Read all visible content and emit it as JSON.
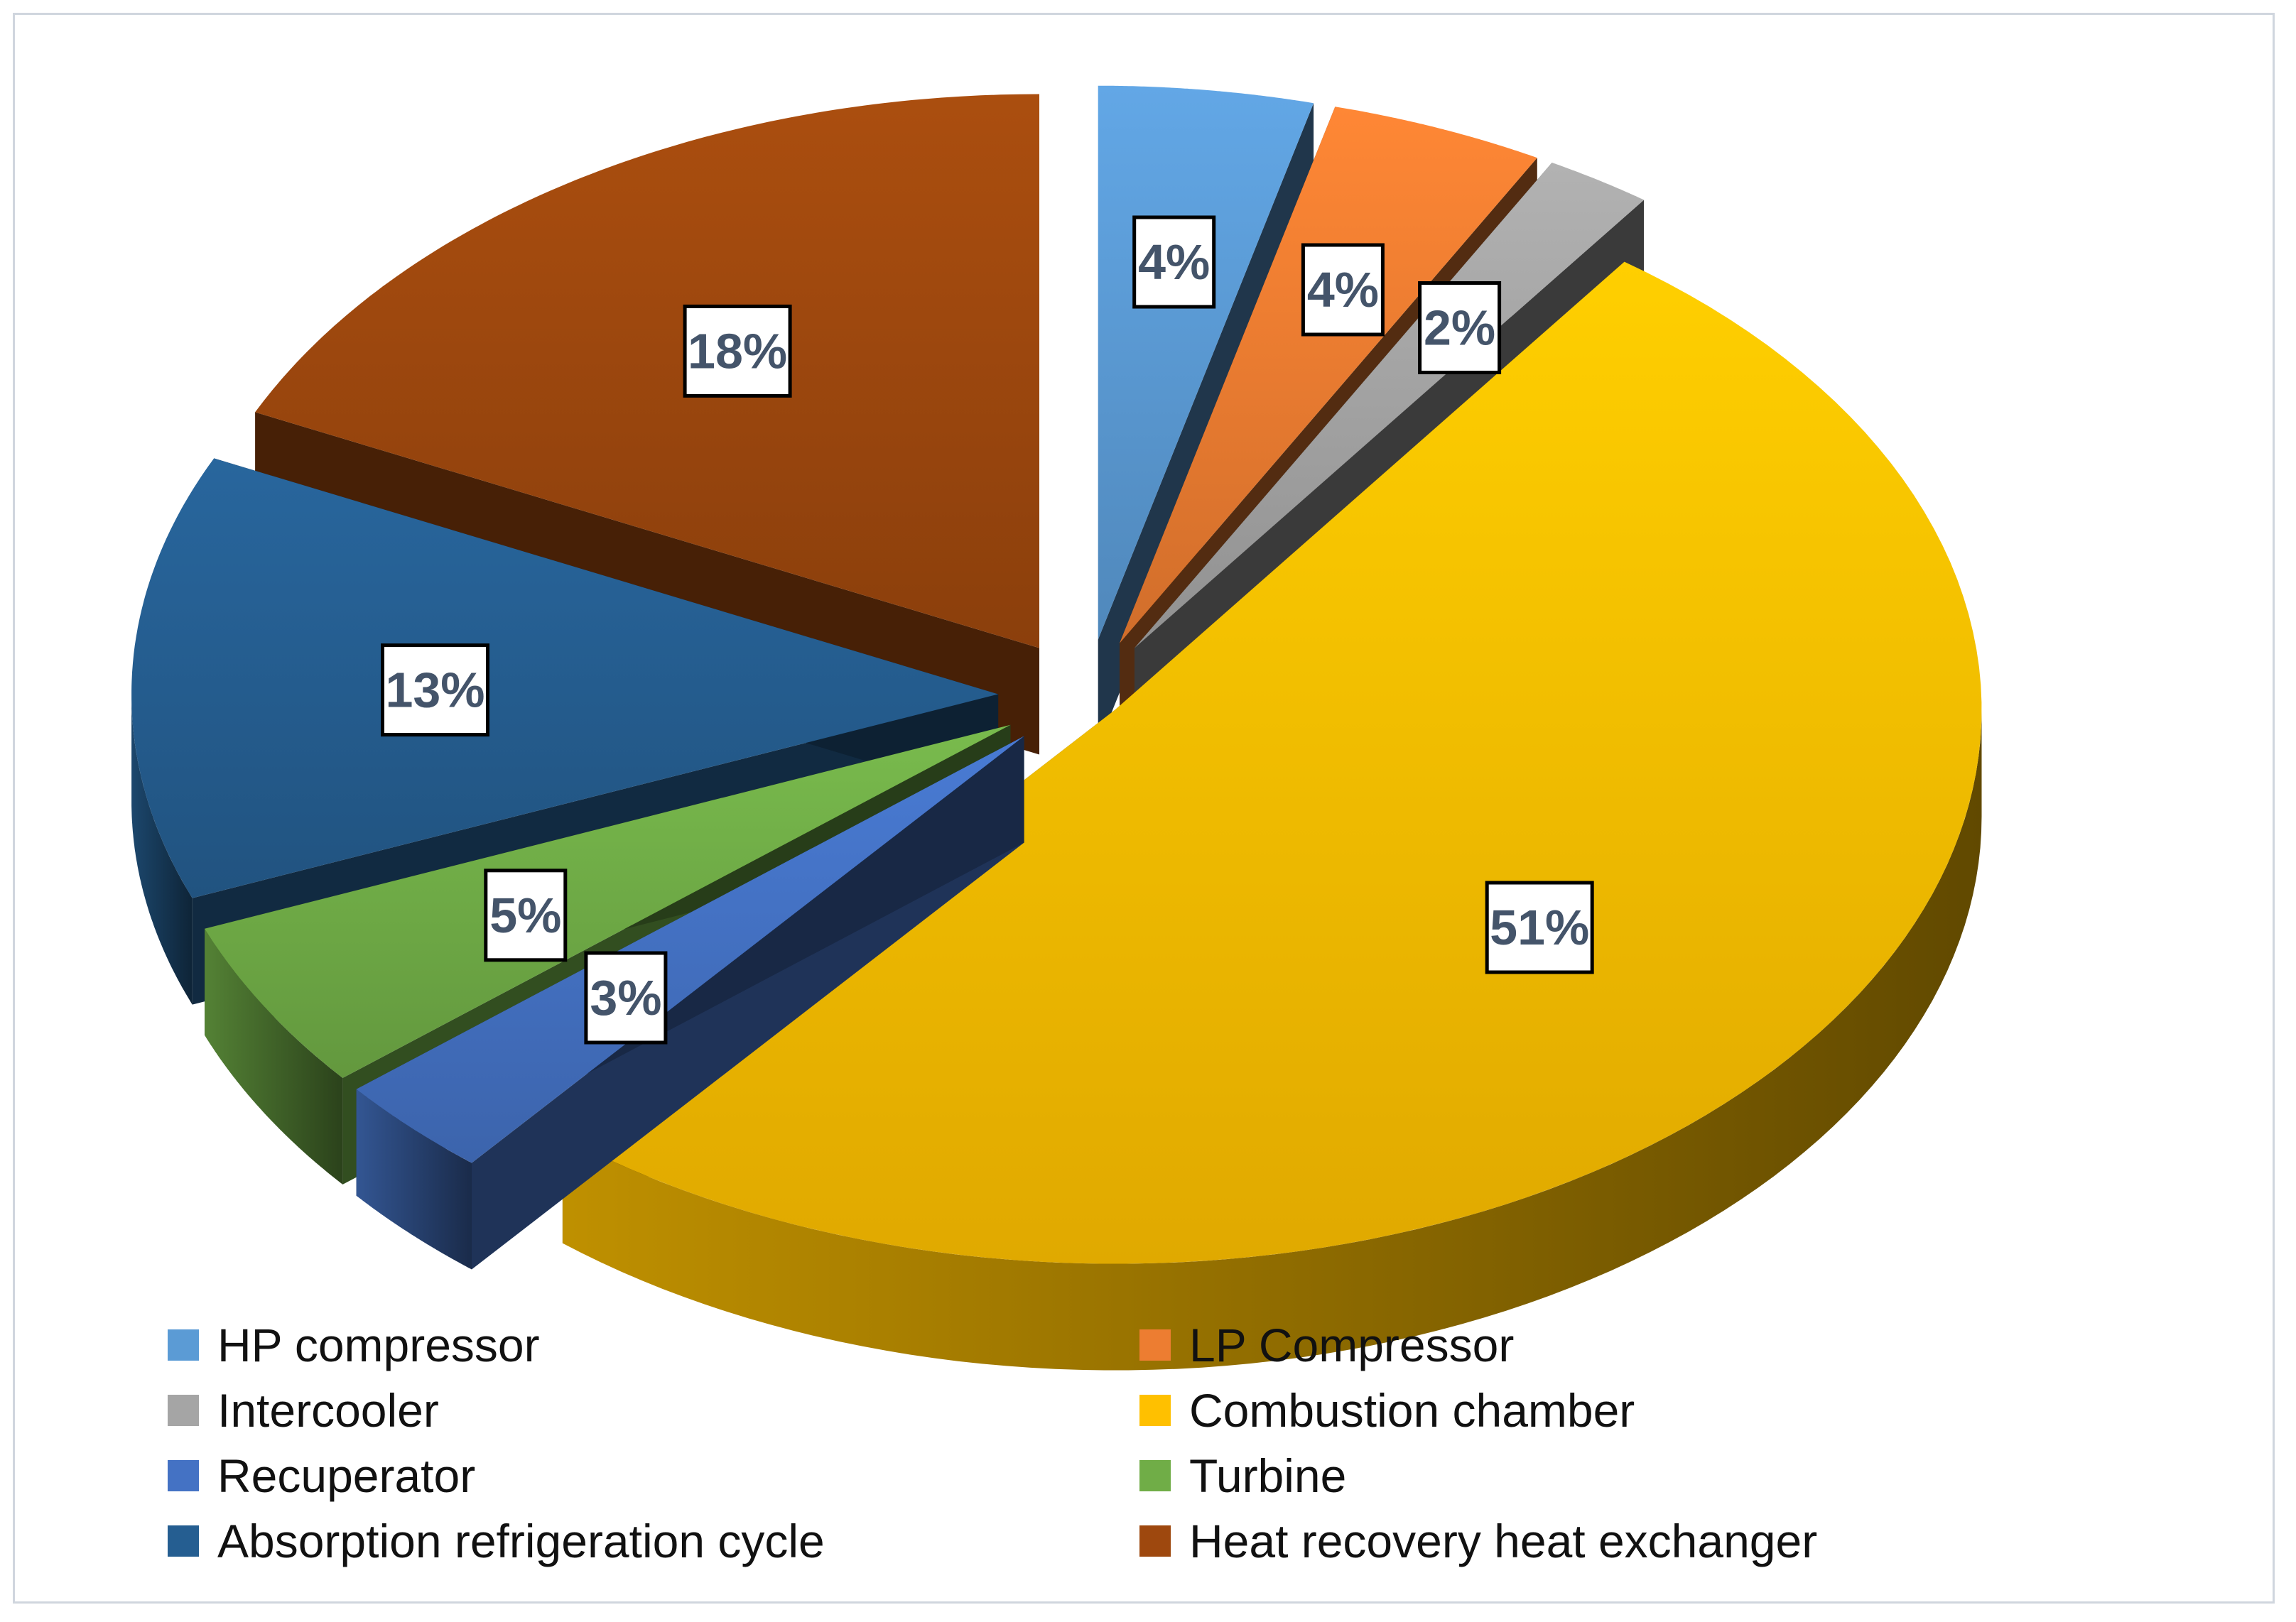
{
  "chart_data": {
    "type": "pie",
    "style": "3d-exploded",
    "title": "",
    "legend_position": "bottom",
    "slices": [
      {
        "name": "HP compressor",
        "value": 4,
        "label": "4%",
        "color": "#5B9BD5"
      },
      {
        "name": "LP Compressor",
        "value": 4,
        "label": "4%",
        "color": "#ED7D31"
      },
      {
        "name": "Intercooler",
        "value": 2,
        "label": "2%",
        "color": "#A5A5A5"
      },
      {
        "name": "Combustion chamber",
        "value": 51,
        "label": "51%",
        "color": "#FFC000"
      },
      {
        "name": "Recuperator",
        "value": 3,
        "label": "3%",
        "color": "#4472C4"
      },
      {
        "name": "Turbine",
        "value": 5,
        "label": "5%",
        "color": "#70AD47"
      },
      {
        "name": "Absorption refrigeration cycle",
        "value": 13,
        "label": "13%",
        "color": "#255E91"
      },
      {
        "name": "Heat recovery heat exchanger",
        "value": 18,
        "label": "18%",
        "color": "#9E480E"
      }
    ]
  },
  "colors": {
    "label_text": "#44546A",
    "frame": "#D0D6DE"
  }
}
